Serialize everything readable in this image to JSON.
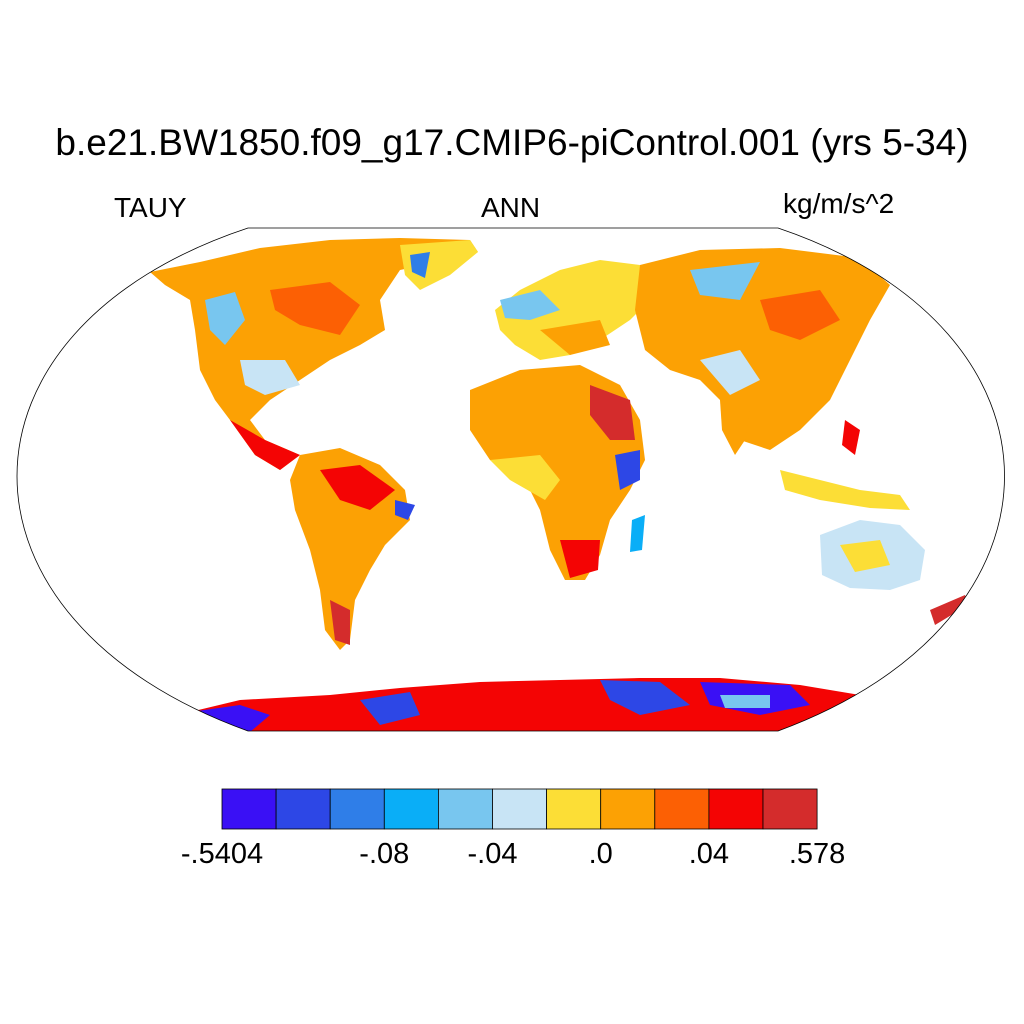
{
  "title": "b.e21.BW1850.f09_g17.CMIP6-piControl.001 (yrs 5-34)",
  "left_label": "TAUY",
  "center_label": "ANN",
  "right_label": "kg/m/s^2",
  "colorbar": {
    "colors": [
      "#3a10f5",
      "#2d47e6",
      "#2f7ee8",
      "#0aaef7",
      "#78c6ef",
      "#c8e4f5",
      "#fcde36",
      "#fca104",
      "#fc6004",
      "#f40404",
      "#d42c2c"
    ],
    "labels": [
      {
        "text": "-.5404",
        "edge": 0
      },
      {
        "text": "-.08",
        "edge": 3
      },
      {
        "text": "-.04",
        "edge": 5
      },
      {
        "text": ".0",
        "edge": 7
      },
      {
        "text": ".04",
        "edge": 9
      },
      {
        "text": ".578",
        "edge": 11
      }
    ]
  },
  "map": {
    "projection": "robinson",
    "variable": "TAUY",
    "season": "ANN"
  }
}
